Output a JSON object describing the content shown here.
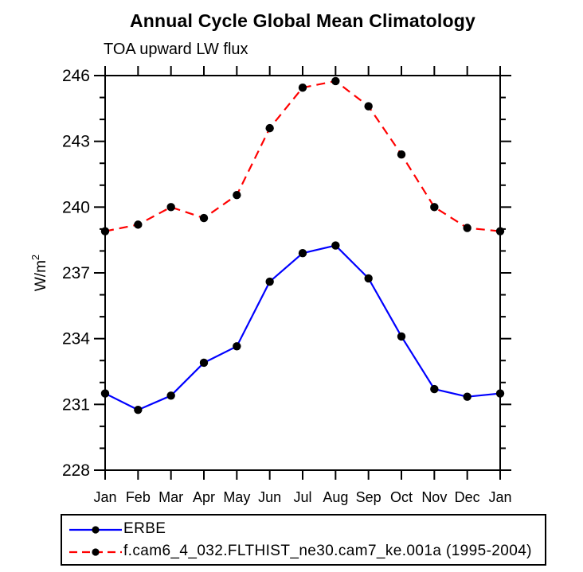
{
  "chart_data": {
    "type": "line",
    "title": "Annual Cycle Global Mean Climatology",
    "subtitle": "TOA upward LW flux",
    "ylabel": "W/m²",
    "xlabel": "",
    "categories": [
      "Jan",
      "Feb",
      "Mar",
      "Apr",
      "May",
      "Jun",
      "Jul",
      "Aug",
      "Sep",
      "Oct",
      "Nov",
      "Dec",
      "Jan"
    ],
    "ylim": [
      228,
      246
    ],
    "yticks": [
      228,
      231,
      234,
      237,
      240,
      243,
      246
    ],
    "minor_tick_step": 1,
    "grid": false,
    "legend_position": "bottom-left-box",
    "frame_color": "#000000",
    "marker_color": "#000000",
    "series": [
      {
        "name": "ERBE",
        "color": "#0000ff",
        "style": "solid",
        "marker": "circle",
        "values": [
          231.5,
          230.75,
          231.4,
          232.9,
          233.65,
          236.6,
          237.9,
          238.25,
          236.75,
          234.1,
          231.7,
          231.35,
          231.5
        ]
      },
      {
        "name": "f.cam6_4_032.FLTHIST_ne30.cam7_ke.001a (1995-2004)",
        "color": "#ff0000",
        "style": "dashed",
        "marker": "circle",
        "values": [
          238.9,
          239.2,
          240.0,
          239.5,
          240.55,
          243.6,
          245.45,
          245.75,
          244.6,
          242.4,
          240.0,
          239.05,
          238.9
        ]
      }
    ]
  }
}
